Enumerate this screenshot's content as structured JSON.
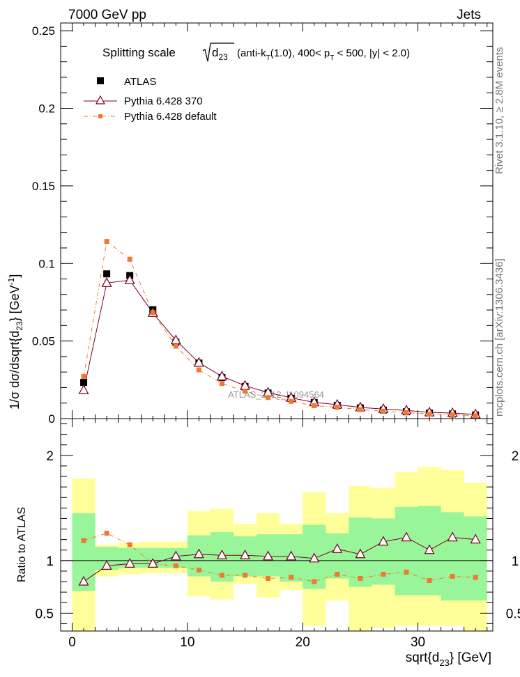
{
  "header": {
    "left": "7000 GeV pp",
    "right": "Jets"
  },
  "side_labels": {
    "rivet": "Rivet 3.1.10,  ≥ 2.8M events",
    "mcplots": "mcplots.cern.ch [arXiv:1306.3436]"
  },
  "watermark": "ATLAS_2012_I1094564",
  "colors": {
    "atlas": "#000000",
    "pythia_370": "#7a0020",
    "pythia_default": "#f07830",
    "band_inner": "#99f599",
    "band_outer": "#ffff99"
  },
  "chart_data": [
    {
      "type": "line",
      "title": "Splitting scale √d23 (anti-kT(1.0), 400< pT < 500, |y| < 2.0)",
      "title_parts": {
        "pre": "Splitting scale",
        "sqrt_base": "d",
        "sqrt_sub": "23",
        "paren_open": "(anti-k",
        "k_sub": "T",
        "mid": "(1.0), 400< p",
        "p_sub": "T",
        "post": " < 500, |y| < 2.0)"
      },
      "ylabel": {
        "pre": "1/σ dσ/dsqrt{d",
        "sub": "23",
        "mid": "} [GeV",
        "sup": "-1",
        "post": "]"
      },
      "xlim": [
        -1,
        36.5
      ],
      "ylim": [
        0,
        0.255
      ],
      "y_ticks": [
        0,
        0.05,
        0.1,
        0.15,
        0.2,
        0.25
      ],
      "y_tick_labels": [
        "0",
        "0.05",
        "0.1",
        "0.15",
        "0.2",
        "0.25"
      ],
      "legend": [
        "ATLAS",
        "Pythia 6.428 370",
        "Pythia 6.428 default"
      ],
      "legend_position": "top-left",
      "x": [
        1,
        3,
        5,
        7,
        9,
        11,
        13,
        15,
        17,
        19,
        21,
        23,
        25,
        27,
        29,
        31,
        33,
        35
      ],
      "series": [
        {
          "name": "ATLAS",
          "style": "square-marker",
          "values": [
            0.0233,
            0.0933,
            0.0922,
            0.0702,
            0.0492,
            0.0358,
            0.0265,
            0.0207,
            0.0165,
            0.0131,
            0.0104,
            0.0085,
            0.0069,
            0.0055,
            0.0044,
            0.0036,
            0.003,
            0.0023
          ]
        },
        {
          "name": "Pythia 6.428 370",
          "style": "solid-line-triangle",
          "values": [
            0.0183,
            0.0874,
            0.0892,
            0.0681,
            0.0505,
            0.036,
            0.0272,
            0.0212,
            0.0168,
            0.0134,
            0.0105,
            0.009,
            0.0072,
            0.0062,
            0.0053,
            0.004,
            0.0036,
            0.0027
          ]
        },
        {
          "name": "Pythia 6.428 default",
          "style": "dash-dot-line-square",
          "values": [
            0.0272,
            0.1142,
            0.1027,
            0.0683,
            0.0467,
            0.0314,
            0.0226,
            0.0177,
            0.0136,
            0.0111,
            0.0083,
            0.0073,
            0.0058,
            0.0048,
            0.0039,
            0.0029,
            0.0025,
            0.0019
          ]
        }
      ]
    },
    {
      "type": "line",
      "ylabel": "Ratio to ATLAS",
      "xlabel": {
        "pre": "sqrt{d",
        "sub": "23",
        "post": "} [GeV]"
      },
      "xlim": [
        -1,
        36.5
      ],
      "ylim": [
        0.33,
        2.35
      ],
      "x_ticks": [
        0,
        10,
        20,
        30
      ],
      "x_tick_labels": [
        "0",
        "10",
        "20",
        "30"
      ],
      "y_ticks": [
        0.5,
        1,
        2
      ],
      "y_tick_labels": [
        "0.5",
        "1",
        "2"
      ],
      "bin_edges": [
        0,
        2,
        4,
        6,
        8,
        10,
        12,
        14,
        16,
        18,
        20,
        22,
        24,
        26,
        28,
        30,
        32,
        34,
        36
      ],
      "band_inner": [
        [
          0.71,
          1.45
        ],
        [
          0.91,
          1.13
        ],
        [
          0.93,
          1.12
        ],
        [
          0.93,
          1.12
        ],
        [
          0.93,
          1.12
        ],
        [
          0.85,
          1.24
        ],
        [
          0.8,
          1.27
        ],
        [
          0.85,
          1.23
        ],
        [
          0.85,
          1.25
        ],
        [
          0.8,
          1.25
        ],
        [
          0.73,
          1.34
        ],
        [
          0.83,
          1.26
        ],
        [
          0.75,
          1.41
        ],
        [
          0.77,
          1.4
        ],
        [
          0.67,
          1.51
        ],
        [
          0.67,
          1.52
        ],
        [
          0.62,
          1.46
        ],
        [
          0.62,
          1.42
        ]
      ],
      "band_outer": [
        [
          0.33,
          1.78
        ],
        [
          0.85,
          1.15
        ],
        [
          0.87,
          1.17
        ],
        [
          0.88,
          1.18
        ],
        [
          0.88,
          1.18
        ],
        [
          0.66,
          1.47
        ],
        [
          0.63,
          1.49
        ],
        [
          0.78,
          1.35
        ],
        [
          0.65,
          1.45
        ],
        [
          0.72,
          1.35
        ],
        [
          0.38,
          1.65
        ],
        [
          0.62,
          1.45
        ],
        [
          0.33,
          1.71
        ],
        [
          0.36,
          1.69
        ],
        [
          0.38,
          1.84
        ],
        [
          0.38,
          1.89
        ],
        [
          0.38,
          1.86
        ],
        [
          0.33,
          1.74
        ]
      ],
      "series": [
        {
          "name": "Pythia 6.428 370",
          "style": "solid-line-triangle",
          "values": [
            0.8,
            0.95,
            0.97,
            0.97,
            1.04,
            1.06,
            1.05,
            1.05,
            1.04,
            1.04,
            1.02,
            1.11,
            1.06,
            1.18,
            1.22,
            1.1,
            1.22,
            1.2
          ]
        },
        {
          "name": "Pythia 6.428 default",
          "style": "dash-dot-line-square",
          "values": [
            1.19,
            1.26,
            1.15,
            0.97,
            0.95,
            0.91,
            0.86,
            0.86,
            0.83,
            0.84,
            0.8,
            0.87,
            0.83,
            0.87,
            0.89,
            0.81,
            0.85,
            0.84
          ]
        }
      ]
    }
  ]
}
